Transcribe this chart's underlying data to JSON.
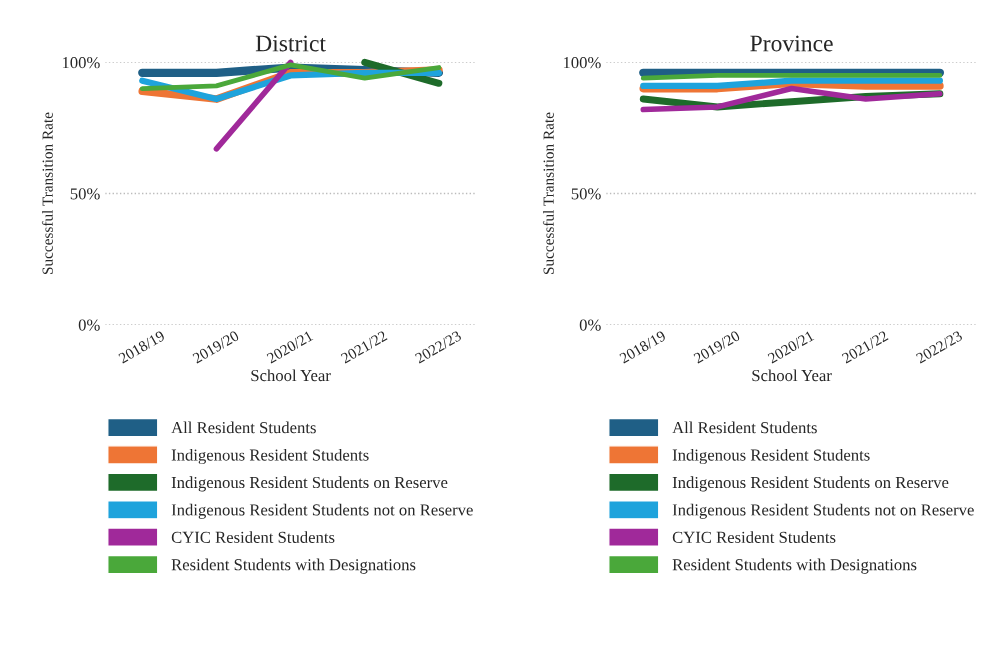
{
  "chart_data": [
    {
      "type": "line",
      "title": "District",
      "xlabel": "School Year",
      "ylabel": "Successful Transition Rate",
      "categories": [
        "2018/19",
        "2019/20",
        "2020/21",
        "2021/22",
        "2022/23"
      ],
      "ylim": [
        0,
        100
      ],
      "yticks": [
        {
          "value": 0,
          "label": "0%"
        },
        {
          "value": 50,
          "label": "50%"
        },
        {
          "value": 100,
          "label": "100%"
        }
      ],
      "grid": "y",
      "legend": "bottom",
      "series": [
        {
          "name": "All Resident Students",
          "color": "#1f5f86",
          "values": [
            96,
            96,
            98,
            97,
            96
          ]
        },
        {
          "name": "Indigenous Resident Students",
          "color": "#ee7535",
          "values": [
            89,
            86,
            96,
            96,
            97
          ]
        },
        {
          "name": "Indigenous Resident Students on Reserve",
          "color": "#1e6b2a",
          "values": [
            null,
            null,
            null,
            100,
            92
          ]
        },
        {
          "name": "Indigenous Resident Students not on Reserve",
          "color": "#1ea3dc",
          "values": [
            93,
            86,
            95,
            96,
            96
          ]
        },
        {
          "name": "CYIC Resident Students",
          "color": "#a0299a",
          "values": [
            null,
            67,
            100,
            null,
            null
          ]
        },
        {
          "name": "Resident Students with Designations",
          "color": "#4aa83a",
          "values": [
            90,
            91,
            99,
            94,
            98
          ]
        }
      ]
    },
    {
      "type": "line",
      "title": "Province",
      "xlabel": "School Year",
      "ylabel": "Successful Transition Rate",
      "categories": [
        "2018/19",
        "2019/20",
        "2020/21",
        "2021/22",
        "2022/23"
      ],
      "ylim": [
        0,
        100
      ],
      "yticks": [
        {
          "value": 0,
          "label": "0%"
        },
        {
          "value": 50,
          "label": "50%"
        },
        {
          "value": 100,
          "label": "100%"
        }
      ],
      "grid": "y",
      "legend": "bottom",
      "series": [
        {
          "name": "All Resident Students",
          "color": "#1f5f86",
          "values": [
            96,
            96,
            96,
            96,
            96
          ]
        },
        {
          "name": "Indigenous Resident Students",
          "color": "#ee7535",
          "values": [
            90,
            90,
            92,
            91,
            91
          ]
        },
        {
          "name": "Indigenous Resident Students on Reserve",
          "color": "#1e6b2a",
          "values": [
            86,
            83,
            85,
            87,
            88
          ]
        },
        {
          "name": "Indigenous Resident Students not on Reserve",
          "color": "#1ea3dc",
          "values": [
            91,
            91,
            93,
            93,
            93
          ]
        },
        {
          "name": "CYIC Resident Students",
          "color": "#a0299a",
          "values": [
            82,
            83,
            90,
            86,
            88
          ]
        },
        {
          "name": "Resident Students with Designations",
          "color": "#4aa83a",
          "values": [
            94,
            95,
            95,
            95,
            95
          ]
        }
      ]
    }
  ]
}
